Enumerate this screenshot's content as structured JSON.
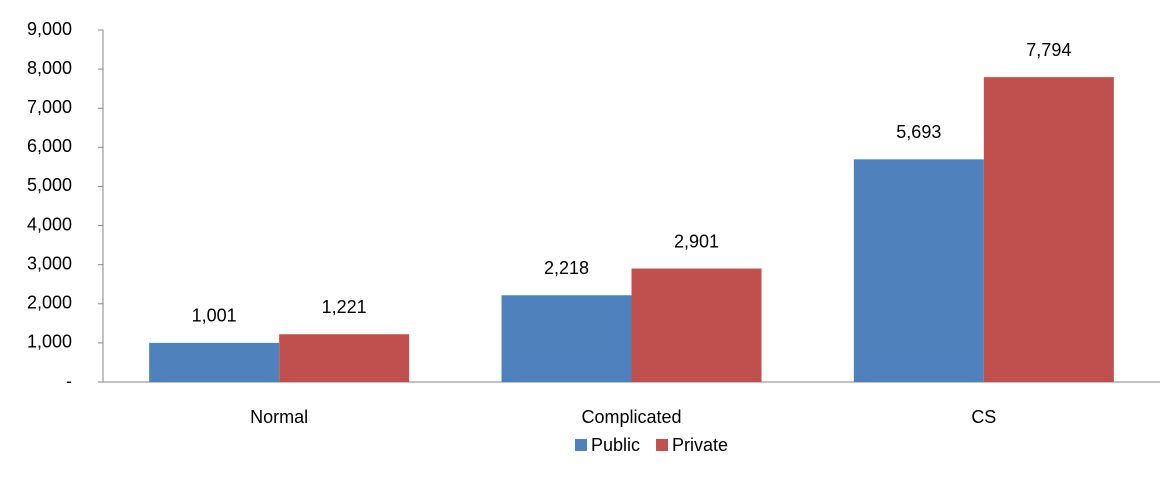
{
  "chart_data": {
    "type": "bar",
    "categories": [
      "Normal",
      "Complicated",
      "CS"
    ],
    "series": [
      {
        "name": "Public",
        "color": "#4f81bd",
        "values": [
          1001,
          2218,
          5693
        ],
        "value_labels": [
          "1,001",
          "2,218",
          "5,693"
        ]
      },
      {
        "name": "Private",
        "color": "#c0504d",
        "values": [
          1221,
          2901,
          7794
        ],
        "value_labels": [
          "1,221",
          "2,901",
          "7,794"
        ]
      }
    ],
    "ylim": [
      0,
      9000
    ],
    "yticks": [
      {
        "value": 0,
        "label": "-"
      },
      {
        "value": 1000,
        "label": "1,000"
      },
      {
        "value": 2000,
        "label": "2,000"
      },
      {
        "value": 3000,
        "label": "3,000"
      },
      {
        "value": 4000,
        "label": "4,000"
      },
      {
        "value": 5000,
        "label": "5,000"
      },
      {
        "value": 6000,
        "label": "6,000"
      },
      {
        "value": 7000,
        "label": "7,000"
      },
      {
        "value": 8000,
        "label": "8,000"
      },
      {
        "value": 9000,
        "label": "9,000"
      }
    ],
    "grid": false,
    "legend": "bottom"
  }
}
